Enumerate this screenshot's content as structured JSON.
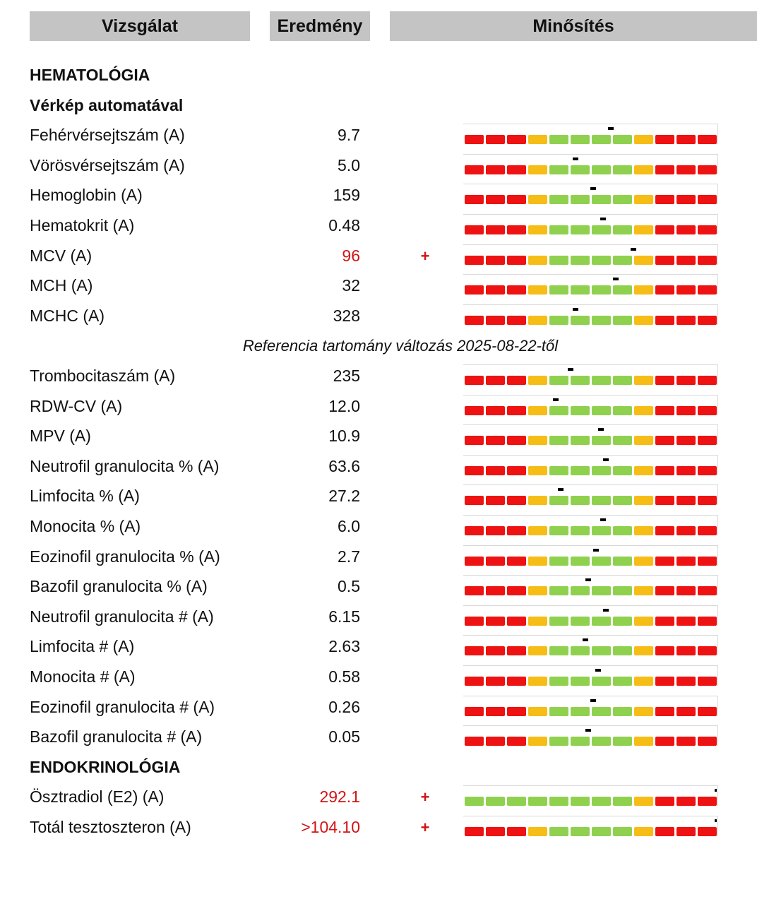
{
  "headers": {
    "test": "Vizsgálat",
    "result": "Eredmény",
    "rating": "Minősítés"
  },
  "colors": {
    "red": "#ee1212",
    "orange": "#f7bd17",
    "green": "#8fd14f",
    "abnormal_text": "#d11414"
  },
  "rows": [
    {
      "type": "section",
      "label": "HEMATOLÓGIA"
    },
    {
      "type": "section",
      "label": "Vérkép automatával"
    },
    {
      "type": "test",
      "label": "Fehérvérsejtszám (A)",
      "value": "9.7",
      "flag": "",
      "abnormal": false,
      "scale": "standard",
      "level": 0.58
    },
    {
      "type": "test",
      "label": "Vörösvérsejtszám (A)",
      "value": "5.0",
      "flag": "",
      "abnormal": false,
      "scale": "standard",
      "level": 0.44
    },
    {
      "type": "test",
      "label": "Hemoglobin (A)",
      "value": "159",
      "flag": "",
      "abnormal": false,
      "scale": "standard",
      "level": 0.51
    },
    {
      "type": "test",
      "label": "Hematokrit (A)",
      "value": "0.48",
      "flag": "",
      "abnormal": false,
      "scale": "standard",
      "level": 0.55
    },
    {
      "type": "test",
      "label": "MCV (A)",
      "value": "96",
      "flag": "+",
      "abnormal": true,
      "scale": "standard",
      "level": 0.67
    },
    {
      "type": "test",
      "label": "MCH (A)",
      "value": "32",
      "flag": "",
      "abnormal": false,
      "scale": "standard",
      "level": 0.6
    },
    {
      "type": "test",
      "label": "MCHC (A)",
      "value": "328",
      "flag": "",
      "abnormal": false,
      "scale": "standard",
      "level": 0.44
    },
    {
      "type": "note",
      "label": "Referencia tartomány változás 2025-08-22-től"
    },
    {
      "type": "test",
      "label": "Trombocitaszám (A)",
      "value": "235",
      "flag": "",
      "abnormal": false,
      "scale": "standard",
      "level": 0.42
    },
    {
      "type": "test",
      "label": "RDW-CV (A)",
      "value": "12.0",
      "flag": "",
      "abnormal": false,
      "scale": "standard",
      "level": 0.36
    },
    {
      "type": "test",
      "label": "MPV (A)",
      "value": "10.9",
      "flag": "",
      "abnormal": false,
      "scale": "standard",
      "level": 0.54
    },
    {
      "type": "test",
      "label": "Neutrofil granulocita % (A)",
      "value": "63.6",
      "flag": "",
      "abnormal": false,
      "scale": "standard",
      "level": 0.56
    },
    {
      "type": "test",
      "label": "Limfocita % (A)",
      "value": "27.2",
      "flag": "",
      "abnormal": false,
      "scale": "standard",
      "level": 0.38
    },
    {
      "type": "test",
      "label": "Monocita % (A)",
      "value": "6.0",
      "flag": "",
      "abnormal": false,
      "scale": "standard",
      "level": 0.55
    },
    {
      "type": "test",
      "label": "Eozinofil granulocita % (A)",
      "value": "2.7",
      "flag": "",
      "abnormal": false,
      "scale": "standard",
      "level": 0.52
    },
    {
      "type": "test",
      "label": "Bazofil granulocita % (A)",
      "value": "0.5",
      "flag": "",
      "abnormal": false,
      "scale": "standard",
      "level": 0.49
    },
    {
      "type": "test",
      "label": "Neutrofil granulocita # (A)",
      "value": "6.15",
      "flag": "",
      "abnormal": false,
      "scale": "standard",
      "level": 0.56
    },
    {
      "type": "test",
      "label": "Limfocita # (A)",
      "value": "2.63",
      "flag": "",
      "abnormal": false,
      "scale": "standard",
      "level": 0.48
    },
    {
      "type": "test",
      "label": "Monocita # (A)",
      "value": "0.58",
      "flag": "",
      "abnormal": false,
      "scale": "standard",
      "level": 0.53
    },
    {
      "type": "test",
      "label": "Eozinofil granulocita # (A)",
      "value": "0.26",
      "flag": "",
      "abnormal": false,
      "scale": "standard",
      "level": 0.51
    },
    {
      "type": "test",
      "label": "Bazofil granulocita # (A)",
      "value": "0.05",
      "flag": "",
      "abnormal": false,
      "scale": "standard",
      "level": 0.49
    },
    {
      "type": "section",
      "label": "ENDOKRINOLÓGIA"
    },
    {
      "type": "test",
      "label": "Ösztradiol (E2) (A)",
      "value": "292.1",
      "flag": "+",
      "abnormal": true,
      "scale": "upper-only",
      "level": 1.0
    },
    {
      "type": "test",
      "label": "Totál tesztoszteron (A)",
      "value": ">104.10",
      "flag": "+",
      "abnormal": true,
      "scale": "standard",
      "level": 1.0
    }
  ]
}
